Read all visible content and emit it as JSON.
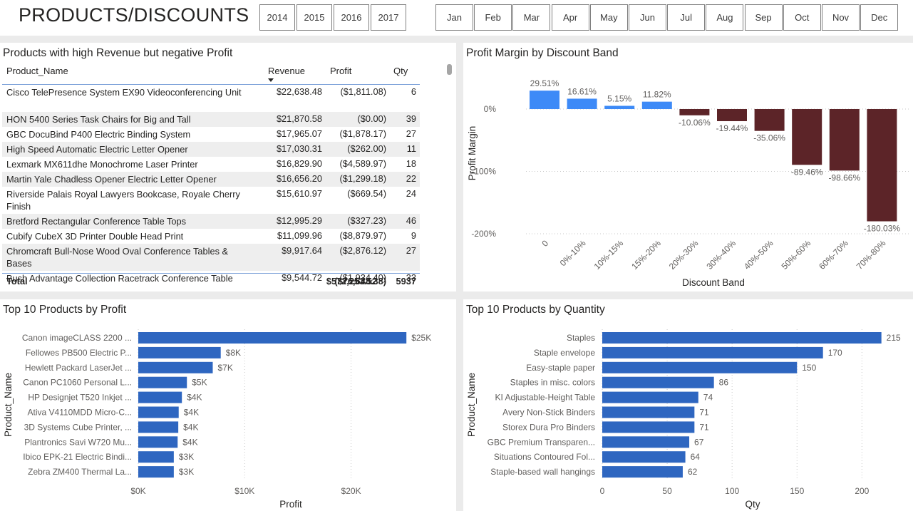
{
  "header": {
    "title": "PRODUCTS/DISCOUNTS",
    "years": [
      "2014",
      "2015",
      "2016",
      "2017"
    ],
    "months": [
      "Jan",
      "Feb",
      "Mar",
      "Apr",
      "May",
      "Jun",
      "Jul",
      "Aug",
      "Sep",
      "Oct",
      "Nov",
      "Dec"
    ]
  },
  "table": {
    "title": "Products with high Revenue but negative Profit",
    "columns": [
      "Product_Name",
      "Revenue",
      "Profit",
      "Qty"
    ],
    "rows": [
      [
        "Cisco TelePresence System EX90 Videoconferencing Unit",
        "$22,638.48",
        "($1,811.08)",
        "6"
      ],
      [
        "HON 5400 Series Task Chairs for Big and Tall",
        "$21,870.58",
        "($0.00)",
        "39"
      ],
      [
        "GBC DocuBind P400 Electric Binding System",
        "$17,965.07",
        "($1,878.17)",
        "27"
      ],
      [
        "High Speed Automatic Electric Letter Opener",
        "$17,030.31",
        "($262.00)",
        "11"
      ],
      [
        "Lexmark MX611dhe Monochrome Laser Printer",
        "$16,829.90",
        "($4,589.97)",
        "18"
      ],
      [
        "Martin Yale Chadless Opener Electric Letter Opener",
        "$16,656.20",
        "($1,299.18)",
        "22"
      ],
      [
        "Riverside Palais Royal Lawyers Bookcase, Royale Cherry Finish",
        "$15,610.97",
        "($669.54)",
        "24"
      ],
      [
        "Bretford Rectangular Conference Table Tops",
        "$12,995.29",
        "($327.23)",
        "46"
      ],
      [
        "Cubify CubeX 3D Printer Double Head Print",
        "$11,099.96",
        "($8,879.97)",
        "9"
      ],
      [
        "Chromcraft Bull-Nose Wood Oval Conference Tables & Bases",
        "$9,917.64",
        "($2,876.12)",
        "27"
      ],
      [
        "Bush Advantage Collection Racetrack Conference Table",
        "$9,544.72",
        "($1,934.40)",
        "33"
      ]
    ],
    "total": [
      "Total",
      "$572,253.52",
      "($76,648.38)",
      "5937"
    ]
  },
  "chart_data": [
    {
      "type": "bar",
      "title": "Profit Margin by Discount Band",
      "xlabel": "Discount Band",
      "ylabel": "Profit Margin",
      "categories": [
        "0",
        "0%-10%",
        "10%-15%",
        "15%-20%",
        "20%-30%",
        "30%-40%",
        "40%-50%",
        "50%-60%",
        "60%-70%",
        "70%-80%"
      ],
      "values": [
        29.51,
        16.61,
        5.15,
        11.82,
        -10.06,
        -19.44,
        -35.06,
        -89.46,
        -98.66,
        -180.03
      ],
      "data_labels": [
        "29.51%",
        "16.61%",
        "5.15%",
        "11.82%",
        "-10.06%",
        "-19.44%",
        "-35.06%",
        "-89.46%",
        "-98.66%",
        "-180.03%"
      ],
      "yticks": [
        0,
        -100,
        -200
      ],
      "ytick_labels": [
        "0%",
        "-100%",
        "-200%"
      ],
      "ylim": [
        -200,
        40
      ],
      "colors": {
        "positive": "#3d8af7",
        "negative": "#5c2428"
      }
    },
    {
      "type": "bar",
      "orientation": "horizontal",
      "title": "Top 10 Products by Profit",
      "xlabel": "Profit",
      "ylabel": "Product_Name",
      "categories": [
        "Canon imageCLASS 2200 ...",
        "Fellowes PB500 Electric P...",
        "Hewlett Packard LaserJet ...",
        "Canon PC1060 Personal L...",
        "HP Designjet T520 Inkjet ...",
        "Ativa V4110MDD Micro-C...",
        "3D Systems Cube Printer, ...",
        "Plantronics Savi W720 Mu...",
        "Ibico EPK-21 Electric Bindi...",
        "Zebra ZM400 Thermal La..."
      ],
      "values": [
        25200,
        7750,
        7000,
        4570,
        4100,
        3800,
        3760,
        3700,
        3340,
        3340
      ],
      "data_labels": [
        "$25K",
        "$8K",
        "$7K",
        "$5K",
        "$4K",
        "$4K",
        "$4K",
        "$4K",
        "$3K",
        "$3K"
      ],
      "xticks": [
        0,
        10000,
        20000
      ],
      "xtick_labels": [
        "$0K",
        "$10K",
        "$20K"
      ],
      "xlim": [
        0,
        28000
      ],
      "color": "#2e66c0"
    },
    {
      "type": "bar",
      "orientation": "horizontal",
      "title": "Top 10 Products by Quantity",
      "xlabel": "Qty",
      "ylabel": "Product_Name",
      "categories": [
        "Staples",
        "Staple envelope",
        "Easy-staple paper",
        "Staples in misc. colors",
        "KI Adjustable-Height Table",
        "Avery Non-Stick Binders",
        "Storex Dura Pro Binders",
        "GBC Premium Transparen...",
        "Situations Contoured Fol...",
        "Staple-based wall hangings"
      ],
      "values": [
        215,
        170,
        150,
        86,
        74,
        71,
        71,
        67,
        64,
        62
      ],
      "data_labels": [
        "215",
        "170",
        "150",
        "86",
        "74",
        "71",
        "71",
        "67",
        "64",
        "62"
      ],
      "xticks": [
        0,
        50,
        100,
        150,
        200
      ],
      "xtick_labels": [
        "0",
        "50",
        "100",
        "150",
        "200"
      ],
      "xlim": [
        0,
        230
      ],
      "color": "#2e66c0"
    }
  ]
}
